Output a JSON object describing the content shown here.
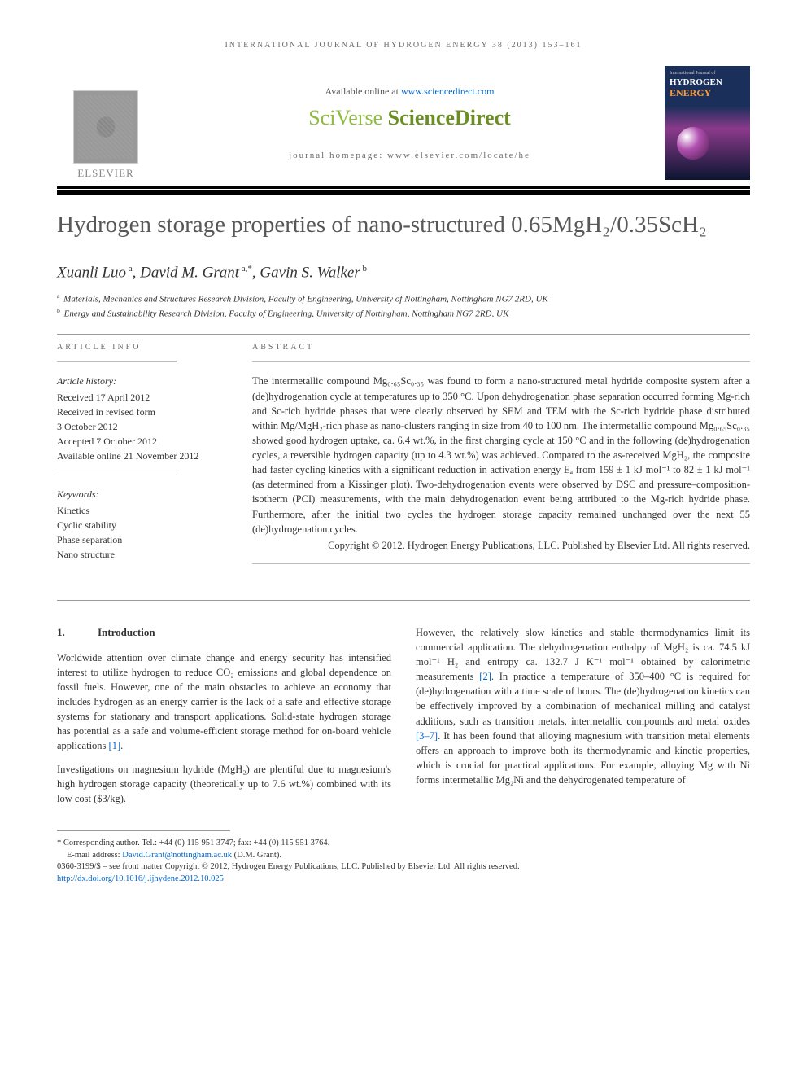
{
  "header": {
    "citation": "INTERNATIONAL JOURNAL OF HYDROGEN ENERGY 38 (2013) 153–161"
  },
  "banner": {
    "elsevier_label": "ELSEVIER",
    "available_text": "Available online at ",
    "available_link": "www.sciencedirect.com",
    "sciverse_light": "SciVerse ",
    "sciverse_bold": "ScienceDirect",
    "homepage_text": "journal homepage: www.elsevier.com/locate/he",
    "cover": {
      "line1": "International Journal of",
      "line2": "HYDROGEN",
      "line3": "ENERGY"
    }
  },
  "title": "Hydrogen storage properties of nano-structured 0.65MgH₂/0.35ScH₂",
  "authors_html": "Xuanli Luo<sup> a</sup>, David M. Grant<sup> a,*</sup>, Gavin S. Walker<sup> b</sup>",
  "affiliations": [
    {
      "sup": "a",
      "text": "Materials, Mechanics and Structures Research Division, Faculty of Engineering, University of Nottingham, Nottingham NG7 2RD, UK"
    },
    {
      "sup": "b",
      "text": "Energy and Sustainability Research Division, Faculty of Engineering, University of Nottingham, Nottingham NG7 2RD, UK"
    }
  ],
  "article_info": {
    "heading": "ARTICLE INFO",
    "history_label": "Article history:",
    "history": [
      "Received 17 April 2012",
      "Received in revised form",
      "3 October 2012",
      "Accepted 7 October 2012",
      "Available online 21 November 2012"
    ],
    "keywords_label": "Keywords:",
    "keywords": [
      "Kinetics",
      "Cyclic stability",
      "Phase separation",
      "Nano structure"
    ]
  },
  "abstract": {
    "heading": "ABSTRACT",
    "text": "The intermetallic compound Mg₀.₆₅Sc₀.₃₅ was found to form a nano-structured metal hydride composite system after a (de)hydrogenation cycle at temperatures up to 350 °C. Upon dehydrogenation phase separation occurred forming Mg-rich and Sc-rich hydride phases that were clearly observed by SEM and TEM with the Sc-rich hydride phase distributed within Mg/MgH₂-rich phase as nano-clusters ranging in size from 40 to 100 nm. The intermetallic compound Mg₀.₆₅Sc₀.₃₅ showed good hydrogen uptake, ca. 6.4 wt.%, in the first charging cycle at 150 °C and in the following (de)hydrogenation cycles, a reversible hydrogen capacity (up to 4.3 wt.%) was achieved. Compared to the as-received MgH₂, the composite had faster cycling kinetics with a significant reduction in activation energy Eₐ from 159 ± 1 kJ mol⁻¹ to 82 ± 1 kJ mol⁻¹ (as determined from a Kissinger plot). Two-dehydrogenation events were observed by DSC and pressure–composition-isotherm (PCI) measurements, with the main dehydrogenation event being attributed to the Mg-rich hydride phase. Furthermore, after the initial two cycles the hydrogen storage capacity remained unchanged over the next 55 (de)hydrogenation cycles.",
    "copyright": "Copyright © 2012, Hydrogen Energy Publications, LLC. Published by Elsevier Ltd. All rights reserved."
  },
  "body": {
    "section_num": "1.",
    "section_title": "Introduction",
    "col1_p1": "Worldwide attention over climate change and energy security has intensified interest to utilize hydrogen to reduce CO₂ emissions and global dependence on fossil fuels. However, one of the main obstacles to achieve an economy that includes hydrogen as an energy carrier is the lack of a safe and effective storage systems for stationary and transport applications. Solid-state hydrogen storage has potential as a safe and volume-efficient storage method for on-board vehicle applications ",
    "col1_ref1": "[1]",
    "col1_p2": "Investigations on magnesium hydride (MgH₂) are plentiful due to magnesium's high hydrogen storage capacity (theoretically up to 7.6 wt.%) combined with its low cost ($3/kg).",
    "col2_p1a": "However, the relatively slow kinetics and stable thermodynamics limit its commercial application. The dehydrogenation enthalpy of MgH₂ is ca. 74.5 kJ mol⁻¹ H₂ and entropy ca. 132.7 J K⁻¹ mol⁻¹ obtained by calorimetric measurements ",
    "col2_ref2": "[2]",
    "col2_p1b": ". In practice a temperature of 350–400 °C is required for (de)hydrogenation with a time scale of hours. The (de)hydrogenation kinetics can be effectively improved by a combination of mechanical milling and catalyst additions, such as transition metals, intermetallic compounds and metal oxides ",
    "col2_ref37": "[3–7]",
    "col2_p1c": ". It has been found that alloying magnesium with transition metal elements offers an approach to improve both its thermodynamic and kinetic properties, which is crucial for practical applications. For example, alloying Mg with Ni forms intermetallic Mg₂Ni and the dehydrogenated temperature of"
  },
  "footer": {
    "corr": "* Corresponding author. Tel.: +44 (0) 115 951 3747; fax: +44 (0) 115 951 3764.",
    "email_label": "E-mail address: ",
    "email": "David.Grant@nottingham.ac.uk",
    "email_suffix": " (D.M. Grant).",
    "issn": "0360-3199/$ – see front matter Copyright © 2012, Hydrogen Energy Publications, LLC. Published by Elsevier Ltd. All rights reserved.",
    "doi": "http://dx.doi.org/10.1016/j.ijhydene.2012.10.025"
  },
  "colors": {
    "text": "#333333",
    "muted": "#6b6b6b",
    "link": "#0066cc",
    "sciverse_green": "#6b8e23",
    "sciverse_light": "#8fbc3f",
    "rule": "#000000",
    "cover_bg_top": "#1a2f5a",
    "cover_orange": "#ff9933"
  }
}
